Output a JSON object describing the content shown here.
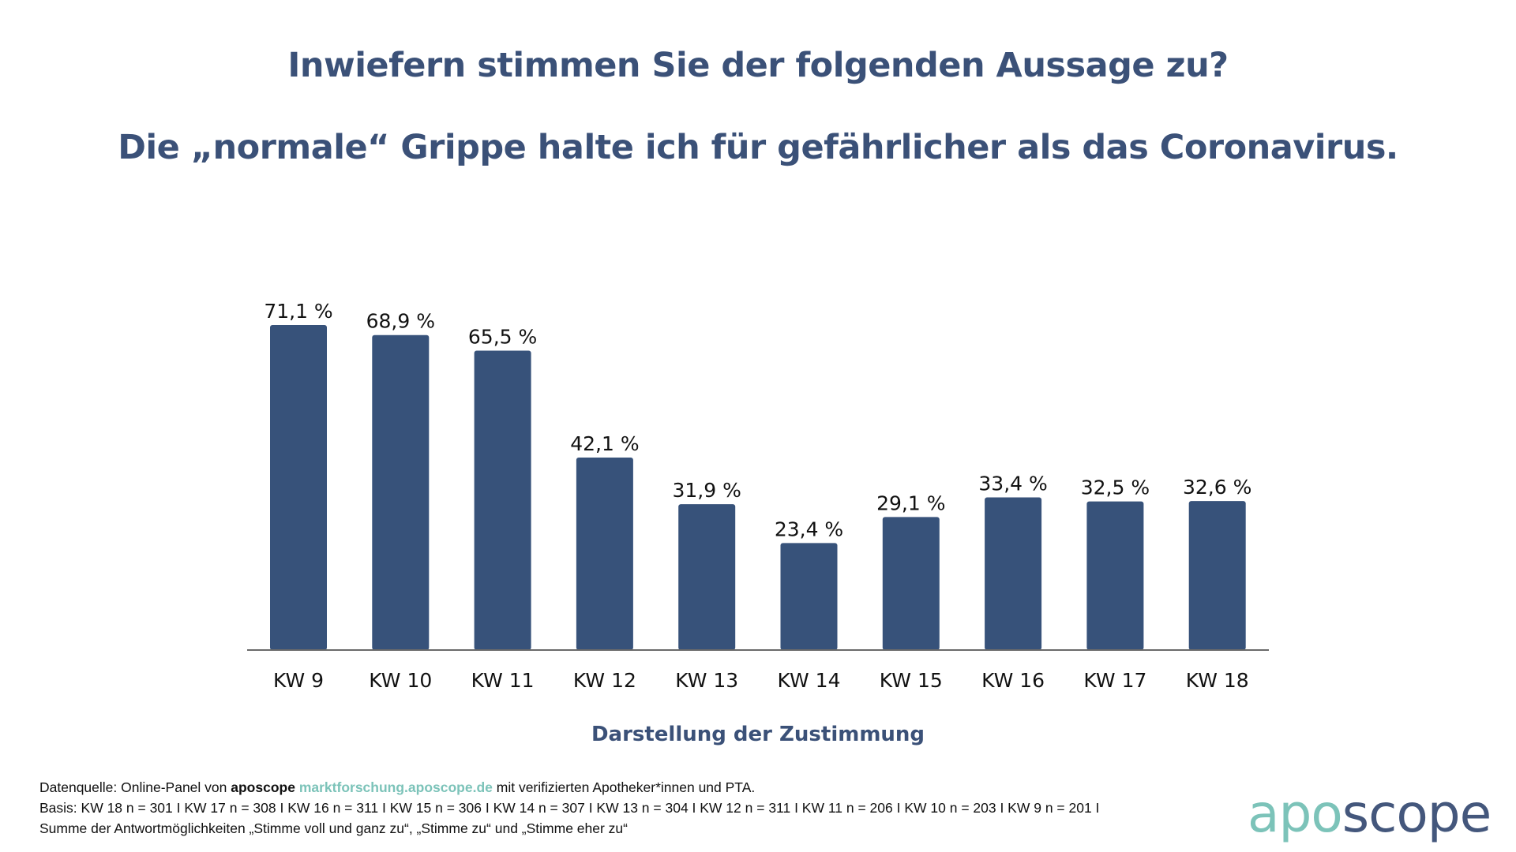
{
  "title": "Inwiefern stimmen Sie der folgenden Aussage zu?",
  "subtitle": "Die „normale“ Grippe halte ich für gefährlicher als das Coronavirus.",
  "colors": {
    "bar": "#37527a",
    "title": "#3b5178",
    "accent": "#7cc3b9",
    "logo_dark": "#44577c"
  },
  "chart_data": {
    "type": "bar",
    "title": "Inwiefern stimmen Sie der folgenden Aussage zu? Die „normale“ Grippe halte ich für gefährlicher als das Coronavirus.",
    "categories": [
      "KW 9",
      "KW 10",
      "KW 11",
      "KW 12",
      "KW 13",
      "KW 14",
      "KW 15",
      "KW 16",
      "KW 17",
      "KW 18"
    ],
    "values": [
      71.1,
      68.9,
      65.5,
      42.1,
      31.9,
      23.4,
      29.1,
      33.4,
      32.5,
      32.6
    ],
    "labels": [
      "71,1 %",
      "68,9 %",
      "65,5 %",
      "42,1 %",
      "31,9 %",
      "23,4 %",
      "29,1 %",
      "33,4 %",
      "32,5 %",
      "32,6 %"
    ],
    "xlabel": "Darstellung der Zustimmung",
    "ylabel": "",
    "ylim": [
      0,
      71.1
    ],
    "grid": false,
    "legend": "none"
  },
  "footer": {
    "line1_prefix": "Datenquelle: Online-Panel von ",
    "line1_brand": "aposcope",
    "line1_link": "marktforschung.aposcope.de",
    "line1_suffix": " mit verifizierten Apotheker*innen und PTA.",
    "line2": "Basis: KW 18 n = 301 I KW 17 n = 308 I KW 16 n = 311 I KW 15 n = 306 I KW 14 n = 307 I KW 13 n = 304 I KW 12 n = 311 I KW 11 n = 206 I KW 10 n = 203 I KW 9 n = 201 I",
    "line3": "Summe der Antwortmöglichkeiten „Stimme voll und ganz zu“, „Stimme zu“ und „Stimme eher zu“"
  },
  "logo": {
    "part1": "apo",
    "part2": "scope"
  }
}
